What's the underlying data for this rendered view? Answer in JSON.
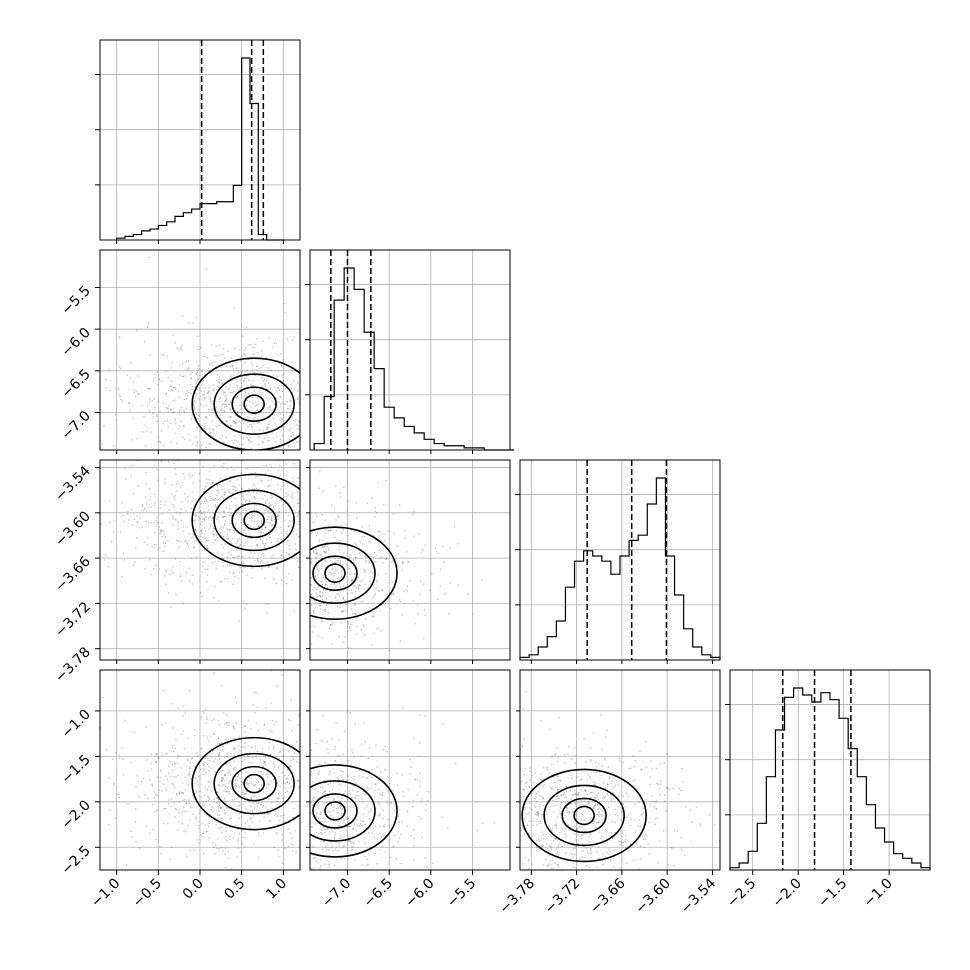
{
  "chart_data": {
    "type": "corner",
    "parameters": [
      {
        "range": [
          -1.2,
          1.2
        ],
        "ticks": [
          -1.0,
          -0.5,
          0.0,
          0.5,
          1.0
        ],
        "tick_labels": [
          "−1.0",
          "−0.5",
          "0.0",
          "0.5",
          "1.0"
        ]
      },
      {
        "range": [
          -7.45,
          -5.05
        ],
        "ticks": [
          -7.0,
          -6.5,
          -6.0,
          -5.5
        ],
        "tick_labels": [
          "−7.0",
          "−6.5",
          "−6.0",
          "−5.5"
        ]
      },
      {
        "range": [
          -3.795,
          -3.53
        ],
        "ticks": [
          -3.78,
          -3.72,
          -3.66,
          -3.6,
          -3.54
        ],
        "tick_labels": [
          "−3.78",
          "−3.72",
          "−3.66",
          "−3.60",
          "−3.54"
        ]
      },
      {
        "range": [
          -2.75,
          -0.55
        ],
        "ticks": [
          -2.5,
          -2.0,
          -1.5,
          -1.0
        ],
        "tick_labels": [
          "−2.5",
          "−2.0",
          "−1.5",
          "−1.0"
        ]
      }
    ],
    "marginals": [
      {
        "edges_start": -1.0,
        "edges_end": 1.0,
        "counts": [
          1,
          2,
          3,
          5,
          6,
          8,
          10,
          13,
          15,
          17,
          20,
          20,
          21,
          21,
          30,
          100,
          75,
          3,
          0,
          0
        ],
        "quantiles": [
          0.02,
          0.62,
          0.76
        ]
      },
      {
        "edges_start": -7.4,
        "edges_end": -5.0,
        "counts": [
          3,
          25,
          70,
          85,
          75,
          55,
          38,
          20,
          15,
          11,
          8,
          5,
          3,
          2,
          2,
          1,
          1,
          0,
          0,
          0
        ],
        "quantiles": [
          -7.2,
          -7.0,
          -6.72
        ]
      },
      {
        "edges_start": -3.795,
        "edges_end": -3.53,
        "counts": [
          1,
          2,
          5,
          9,
          15,
          28,
          38,
          42,
          40,
          38,
          33,
          40,
          46,
          48,
          60,
          70,
          40,
          25,
          12,
          5,
          2,
          1
        ],
        "quantiles": [
          -3.706,
          -3.647,
          -3.601
        ]
      },
      {
        "edges_start": -2.75,
        "edges_end": -0.55,
        "counts": [
          1,
          3,
          8,
          20,
          40,
          60,
          74,
          78,
          75,
          72,
          76,
          73,
          65,
          52,
          40,
          28,
          18,
          12,
          7,
          5,
          3,
          1
        ],
        "quantiles": [
          -2.17,
          -1.82,
          -1.42
        ]
      }
    ],
    "joint_peaks": [
      {
        "row": 1,
        "col": 0,
        "x": 0.65,
        "y": -6.9
      },
      {
        "row": 2,
        "col": 0,
        "x": 0.65,
        "y": -3.61
      },
      {
        "row": 2,
        "col": 1,
        "x": -7.15,
        "y": -3.68
      },
      {
        "row": 3,
        "col": 0,
        "x": 0.65,
        "y": -1.8
      },
      {
        "row": 3,
        "col": 1,
        "x": -7.15,
        "y": -2.1
      },
      {
        "row": 3,
        "col": 2,
        "x": -3.71,
        "y": -2.15
      }
    ]
  }
}
